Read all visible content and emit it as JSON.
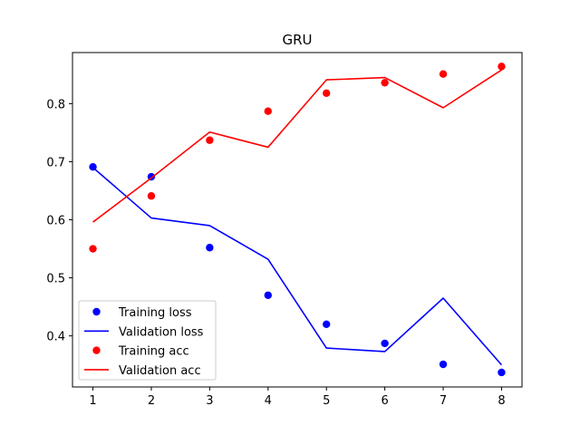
{
  "chart_data": {
    "type": "line",
    "title": "GRU",
    "xlabel": "",
    "ylabel": "",
    "x": [
      1,
      2,
      3,
      4,
      5,
      6,
      7,
      8
    ],
    "xlim": [
      0.65,
      8.35
    ],
    "ylim": [
      0.312,
      0.888
    ],
    "xticks": [
      1,
      2,
      3,
      4,
      5,
      6,
      7,
      8
    ],
    "yticks": [
      0.4,
      0.5,
      0.6,
      0.7,
      0.8
    ],
    "ytick_labels": [
      "0.4",
      "0.5",
      "0.6",
      "0.7",
      "0.8"
    ],
    "grid": false,
    "legend_position": "lower-left",
    "series": [
      {
        "name": "Training loss",
        "style": "markers",
        "color": "#0000ff",
        "values": [
          0.691,
          0.674,
          0.552,
          0.47,
          0.42,
          0.387,
          0.351,
          0.337
        ]
      },
      {
        "name": "Validation loss",
        "style": "line",
        "color": "#0000ff",
        "values": [
          0.69,
          0.603,
          0.59,
          0.532,
          0.379,
          0.373,
          0.465,
          0.35
        ]
      },
      {
        "name": "Training acc",
        "style": "markers",
        "color": "#ff0000",
        "values": [
          0.55,
          0.641,
          0.737,
          0.787,
          0.818,
          0.836,
          0.851,
          0.864
        ]
      },
      {
        "name": "Validation acc",
        "style": "line",
        "color": "#ff0000",
        "values": [
          0.596,
          0.672,
          0.751,
          0.725,
          0.841,
          0.845,
          0.793,
          0.858
        ]
      }
    ]
  }
}
